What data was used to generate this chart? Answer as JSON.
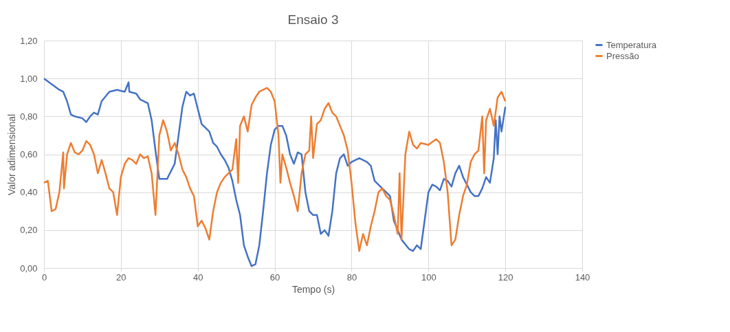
{
  "chart_data": {
    "type": "line",
    "title": "Ensaio 3",
    "xlabel": "Tempo (s)",
    "ylabel": "Valor adimensional",
    "xlim": [
      0,
      140
    ],
    "xticks": [
      0,
      20,
      40,
      60,
      80,
      100,
      120,
      140
    ],
    "ylim": [
      0,
      1.2
    ],
    "yticks": [
      {
        "value": 0,
        "label": "0,00"
      },
      {
        "value": 0.2,
        "label": "0,20"
      },
      {
        "value": 0.4,
        "label": "0,40"
      },
      {
        "value": 0.6,
        "label": "0,60"
      },
      {
        "value": 0.8,
        "label": "0,80"
      },
      {
        "value": 1.0,
        "label": "1,00"
      },
      {
        "value": 1.2,
        "label": "1,20"
      }
    ],
    "grid": true,
    "legend": "right",
    "marker": "none",
    "line_style": "solid",
    "series": [
      {
        "name": "Temperatura",
        "color": "#4472c4",
        "x": [
          0,
          2,
          4,
          5,
          6,
          7,
          8,
          10,
          11,
          12,
          13,
          14,
          15,
          17,
          19,
          21,
          22,
          22.2,
          24,
          25,
          27,
          28,
          29,
          30,
          32,
          34,
          35,
          36,
          37,
          38,
          39,
          40,
          41,
          42,
          43,
          44,
          45,
          46,
          47,
          48,
          49,
          50,
          51,
          52,
          53,
          54,
          55,
          56,
          57,
          58,
          59,
          60,
          61,
          62,
          63,
          64,
          65,
          66,
          67,
          68,
          69,
          70,
          71,
          72,
          73,
          74,
          75,
          76,
          77,
          78,
          79,
          80,
          82,
          84,
          85,
          86,
          88,
          90,
          91,
          92,
          93,
          95,
          96,
          97,
          98,
          99,
          100,
          101,
          102,
          103,
          104,
          105,
          106,
          107,
          108,
          109,
          110,
          111,
          112,
          113,
          114,
          115,
          116,
          117,
          117.5,
          118,
          118.5,
          119,
          120
        ],
        "values": [
          1.0,
          0.97,
          0.94,
          0.93,
          0.88,
          0.81,
          0.8,
          0.79,
          0.77,
          0.8,
          0.82,
          0.81,
          0.88,
          0.93,
          0.94,
          0.93,
          0.98,
          0.93,
          0.92,
          0.89,
          0.87,
          0.78,
          0.62,
          0.47,
          0.47,
          0.55,
          0.7,
          0.85,
          0.93,
          0.91,
          0.92,
          0.84,
          0.76,
          0.74,
          0.72,
          0.66,
          0.64,
          0.6,
          0.57,
          0.53,
          0.46,
          0.36,
          0.28,
          0.12,
          0.06,
          0.01,
          0.02,
          0.12,
          0.3,
          0.5,
          0.65,
          0.73,
          0.75,
          0.75,
          0.7,
          0.6,
          0.55,
          0.61,
          0.6,
          0.4,
          0.3,
          0.28,
          0.28,
          0.18,
          0.2,
          0.17,
          0.3,
          0.5,
          0.58,
          0.6,
          0.54,
          0.56,
          0.58,
          0.56,
          0.54,
          0.46,
          0.42,
          0.38,
          0.25,
          0.2,
          0.15,
          0.1,
          0.09,
          0.12,
          0.1,
          0.25,
          0.4,
          0.44,
          0.43,
          0.41,
          0.47,
          0.46,
          0.43,
          0.5,
          0.54,
          0.48,
          0.44,
          0.4,
          0.38,
          0.38,
          0.42,
          0.48,
          0.45,
          0.58,
          0.78,
          0.6,
          0.8,
          0.72,
          0.85
        ]
      },
      {
        "name": "Pressão",
        "color": "#ed7d31",
        "x": [
          0,
          1,
          2,
          3,
          4,
          5,
          5.2,
          6,
          7,
          8,
          9,
          10,
          11,
          12,
          13,
          14,
          15,
          16,
          17,
          18,
          19,
          20,
          21,
          22,
          23,
          24,
          25,
          26,
          27,
          28,
          29,
          30,
          31,
          32,
          33,
          34,
          35,
          36,
          37,
          38,
          39,
          40,
          41,
          42,
          43,
          44,
          45,
          46,
          47,
          48,
          49,
          50,
          50.5,
          51,
          52,
          53,
          54,
          55,
          56,
          57,
          58,
          59,
          60,
          61,
          61.5,
          62,
          63,
          64,
          65,
          66,
          67,
          68,
          69,
          69.5,
          70,
          71,
          72,
          73,
          74,
          75,
          76,
          77,
          78,
          79,
          80,
          81,
          82,
          83,
          84,
          85,
          86,
          87,
          88,
          89,
          90,
          91,
          92,
          92.5,
          93,
          94,
          95,
          96,
          97,
          98,
          100,
          102,
          103,
          104,
          105,
          106,
          107,
          108,
          109,
          110,
          111,
          112,
          113,
          114,
          114.5,
          115,
          116,
          117,
          118,
          119,
          120
        ],
        "values": [
          0.45,
          0.46,
          0.3,
          0.31,
          0.4,
          0.61,
          0.42,
          0.6,
          0.66,
          0.61,
          0.6,
          0.62,
          0.67,
          0.65,
          0.6,
          0.5,
          0.57,
          0.5,
          0.42,
          0.4,
          0.28,
          0.48,
          0.55,
          0.58,
          0.57,
          0.55,
          0.6,
          0.58,
          0.59,
          0.5,
          0.28,
          0.7,
          0.78,
          0.72,
          0.62,
          0.66,
          0.6,
          0.52,
          0.48,
          0.42,
          0.38,
          0.22,
          0.25,
          0.21,
          0.15,
          0.3,
          0.4,
          0.45,
          0.48,
          0.5,
          0.52,
          0.68,
          0.45,
          0.75,
          0.8,
          0.72,
          0.86,
          0.9,
          0.93,
          0.94,
          0.95,
          0.93,
          0.88,
          0.7,
          0.45,
          0.6,
          0.53,
          0.45,
          0.38,
          0.3,
          0.5,
          0.6,
          0.62,
          0.8,
          0.58,
          0.76,
          0.78,
          0.84,
          0.87,
          0.82,
          0.8,
          0.75,
          0.7,
          0.62,
          0.45,
          0.24,
          0.09,
          0.18,
          0.12,
          0.22,
          0.3,
          0.4,
          0.42,
          0.38,
          0.36,
          0.28,
          0.18,
          0.5,
          0.15,
          0.6,
          0.72,
          0.65,
          0.63,
          0.66,
          0.65,
          0.68,
          0.66,
          0.56,
          0.4,
          0.12,
          0.15,
          0.28,
          0.38,
          0.44,
          0.56,
          0.6,
          0.62,
          0.8,
          0.5,
          0.78,
          0.84,
          0.75,
          0.9,
          0.93,
          0.88
        ]
      }
    ]
  }
}
